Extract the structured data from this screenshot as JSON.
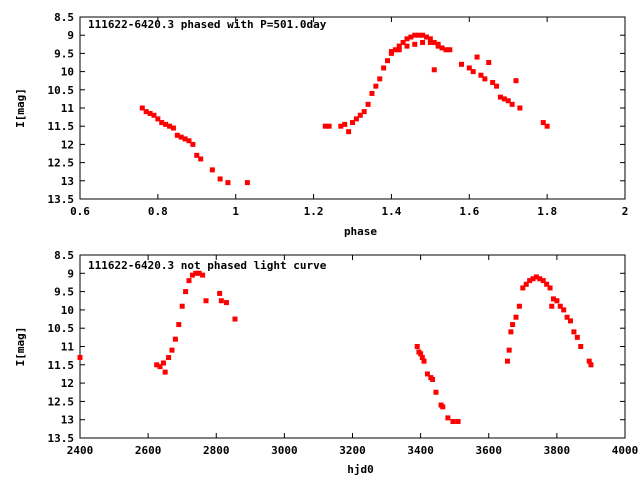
{
  "chart_data": [
    {
      "type": "scatter",
      "title": "111622-6420.3 phased with P=501.0day",
      "xlabel": "phase",
      "ylabel": "I[mag]",
      "xlim": [
        0.6,
        2.0
      ],
      "ylim": [
        8.5,
        13.5
      ],
      "y_inverted": true,
      "grid": false,
      "xticks": [
        0.6,
        0.8,
        1.0,
        1.2,
        1.4,
        1.6,
        1.8,
        2.0
      ],
      "xtick_labels": [
        "0.6",
        "0.8",
        "1",
        "1.2",
        "1.4",
        "1.6",
        "1.8",
        "2"
      ],
      "yticks": [
        8.5,
        9,
        9.5,
        10,
        10.5,
        11,
        11.5,
        12,
        12.5,
        13,
        13.5
      ],
      "ytick_labels": [
        "8.5",
        "9",
        "9.5",
        "10",
        "10.5",
        "11",
        "11.5",
        "12",
        "12.5",
        "13",
        "13.5"
      ],
      "marker_color": "#ff0000",
      "series": [
        {
          "points": [
            [
              0.76,
              11.0
            ],
            [
              0.77,
              11.1
            ],
            [
              0.78,
              11.15
            ],
            [
              0.79,
              11.2
            ],
            [
              0.8,
              11.3
            ],
            [
              0.81,
              11.4
            ],
            [
              0.82,
              11.45
            ],
            [
              0.83,
              11.5
            ],
            [
              0.84,
              11.55
            ],
            [
              0.85,
              11.75
            ],
            [
              0.86,
              11.8
            ],
            [
              0.87,
              11.85
            ],
            [
              0.88,
              11.9
            ],
            [
              0.89,
              12.0
            ],
            [
              0.9,
              12.3
            ],
            [
              0.91,
              12.4
            ],
            [
              0.94,
              12.7
            ],
            [
              0.96,
              12.95
            ],
            [
              0.98,
              13.05
            ],
            [
              1.03,
              13.05
            ],
            [
              1.23,
              11.5
            ],
            [
              1.24,
              11.5
            ],
            [
              1.27,
              11.5
            ],
            [
              1.28,
              11.45
            ],
            [
              1.29,
              11.65
            ],
            [
              1.3,
              11.4
            ],
            [
              1.31,
              11.3
            ],
            [
              1.32,
              11.2
            ],
            [
              1.33,
              11.1
            ],
            [
              1.34,
              10.9
            ],
            [
              1.35,
              10.6
            ],
            [
              1.36,
              10.4
            ],
            [
              1.37,
              10.2
            ],
            [
              1.38,
              9.9
            ],
            [
              1.39,
              9.7
            ],
            [
              1.4,
              9.5
            ],
            [
              1.41,
              9.4
            ],
            [
              1.42,
              9.3
            ],
            [
              1.43,
              9.2
            ],
            [
              1.44,
              9.1
            ],
            [
              1.45,
              9.05
            ],
            [
              1.46,
              9.0
            ],
            [
              1.47,
              9.0
            ],
            [
              1.48,
              9.0
            ],
            [
              1.49,
              9.05
            ],
            [
              1.5,
              9.1
            ],
            [
              1.51,
              9.2
            ],
            [
              1.52,
              9.3
            ],
            [
              1.53,
              9.35
            ],
            [
              1.54,
              9.4
            ],
            [
              1.4,
              9.45
            ],
            [
              1.42,
              9.4
            ],
            [
              1.44,
              9.3
            ],
            [
              1.46,
              9.25
            ],
            [
              1.48,
              9.2
            ],
            [
              1.5,
              9.2
            ],
            [
              1.52,
              9.25
            ],
            [
              1.55,
              9.4
            ],
            [
              1.51,
              9.95
            ],
            [
              1.58,
              9.8
            ],
            [
              1.6,
              9.9
            ],
            [
              1.61,
              10.0
            ],
            [
              1.62,
              9.6
            ],
            [
              1.63,
              10.1
            ],
            [
              1.64,
              10.2
            ],
            [
              1.65,
              9.75
            ],
            [
              1.66,
              10.3
            ],
            [
              1.67,
              10.4
            ],
            [
              1.68,
              10.7
            ],
            [
              1.69,
              10.75
            ],
            [
              1.7,
              10.8
            ],
            [
              1.71,
              10.9
            ],
            [
              1.72,
              10.25
            ],
            [
              1.73,
              11.0
            ],
            [
              1.79,
              11.4
            ],
            [
              1.8,
              11.5
            ]
          ]
        }
      ]
    },
    {
      "type": "scatter",
      "title": "111622-6420.3 not phased light curve",
      "xlabel": "hjd0",
      "ylabel": "I[mag]",
      "xlim": [
        2400,
        4000
      ],
      "ylim": [
        8.5,
        13.5
      ],
      "y_inverted": true,
      "grid": false,
      "xticks": [
        2400,
        2600,
        2800,
        3000,
        3200,
        3400,
        3600,
        3800,
        4000
      ],
      "xtick_labels": [
        "2400",
        "2600",
        "2800",
        "3000",
        "3200",
        "3400",
        "3600",
        "3800",
        "4000"
      ],
      "yticks": [
        8.5,
        9,
        9.5,
        10,
        10.5,
        11,
        11.5,
        12,
        12.5,
        13,
        13.5
      ],
      "ytick_labels": [
        "8.5",
        "9",
        "9.5",
        "10",
        "10.5",
        "11",
        "11.5",
        "12",
        "12.5",
        "13",
        "13.5"
      ],
      "marker_color": "#ff0000",
      "series": [
        {
          "points": [
            [
              2400,
              11.3
            ],
            [
              2625,
              11.5
            ],
            [
              2635,
              11.55
            ],
            [
              2645,
              11.45
            ],
            [
              2650,
              11.7
            ],
            [
              2660,
              11.3
            ],
            [
              2670,
              11.1
            ],
            [
              2680,
              10.8
            ],
            [
              2690,
              10.4
            ],
            [
              2700,
              9.9
            ],
            [
              2710,
              9.5
            ],
            [
              2720,
              9.2
            ],
            [
              2730,
              9.05
            ],
            [
              2740,
              9.0
            ],
            [
              2750,
              9.0
            ],
            [
              2760,
              9.05
            ],
            [
              2770,
              9.75
            ],
            [
              2810,
              9.55
            ],
            [
              2815,
              9.75
            ],
            [
              2830,
              9.8
            ],
            [
              2855,
              10.25
            ],
            [
              3390,
              11.0
            ],
            [
              3395,
              11.15
            ],
            [
              3400,
              11.2
            ],
            [
              3405,
              11.3
            ],
            [
              3410,
              11.4
            ],
            [
              3420,
              11.75
            ],
            [
              3430,
              11.85
            ],
            [
              3435,
              11.9
            ],
            [
              3445,
              12.25
            ],
            [
              3460,
              12.6
            ],
            [
              3465,
              12.65
            ],
            [
              3480,
              12.95
            ],
            [
              3495,
              13.05
            ],
            [
              3510,
              13.05
            ],
            [
              3655,
              11.4
            ],
            [
              3660,
              11.1
            ],
            [
              3665,
              10.6
            ],
            [
              3670,
              10.4
            ],
            [
              3680,
              10.2
            ],
            [
              3690,
              9.9
            ],
            [
              3700,
              9.4
            ],
            [
              3710,
              9.3
            ],
            [
              3720,
              9.2
            ],
            [
              3730,
              9.15
            ],
            [
              3740,
              9.1
            ],
            [
              3750,
              9.15
            ],
            [
              3760,
              9.2
            ],
            [
              3770,
              9.3
            ],
            [
              3780,
              9.4
            ],
            [
              3785,
              9.9
            ],
            [
              3790,
              9.7
            ],
            [
              3800,
              9.75
            ],
            [
              3810,
              9.9
            ],
            [
              3820,
              10.0
            ],
            [
              3830,
              10.2
            ],
            [
              3840,
              10.3
            ],
            [
              3850,
              10.6
            ],
            [
              3860,
              10.75
            ],
            [
              3870,
              11.0
            ],
            [
              3895,
              11.4
            ],
            [
              3900,
              11.5
            ]
          ]
        }
      ]
    }
  ]
}
